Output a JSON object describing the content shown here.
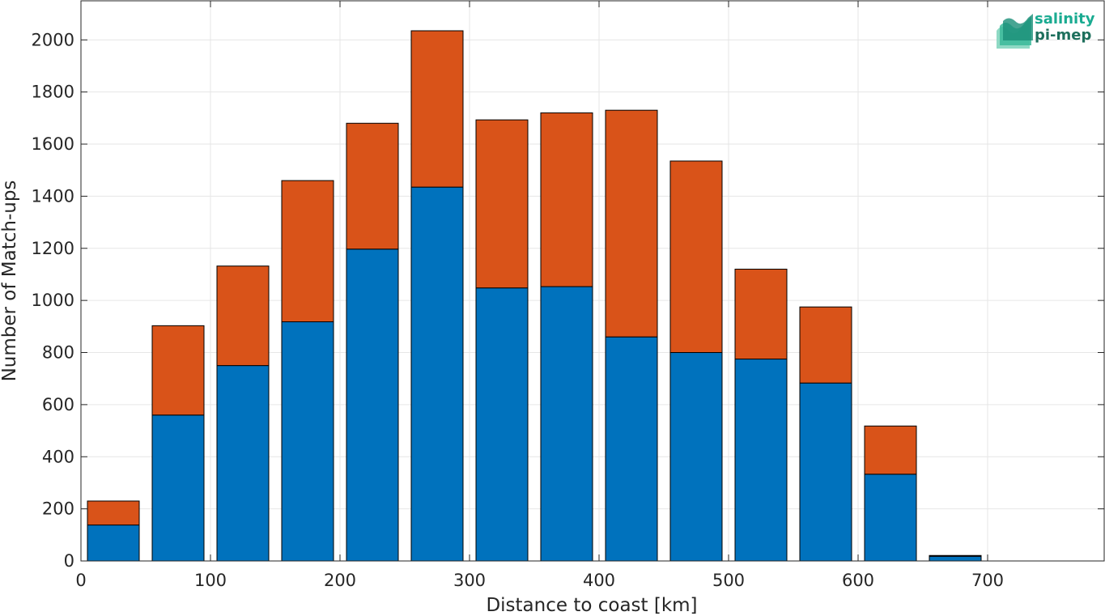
{
  "chart_data": {
    "type": "bar",
    "stacked": true,
    "xlabel": "Distance to coast [km]",
    "ylabel": "Number of Match-ups",
    "xlim": [
      0,
      790
    ],
    "ylim": [
      0,
      2150
    ],
    "xticks": [
      0,
      100,
      200,
      300,
      400,
      500,
      600,
      700
    ],
    "yticks": [
      0,
      200,
      400,
      600,
      800,
      1000,
      1200,
      1400,
      1600,
      1800,
      2000
    ],
    "grid": true,
    "bar_width_km": 40,
    "x": [
      25,
      75,
      125,
      175,
      225,
      275,
      325,
      375,
      425,
      475,
      525,
      575,
      625,
      675,
      725
    ],
    "series": [
      {
        "color": "#0072BD",
        "values": [
          138,
          560,
          750,
          918,
          1197,
          1435,
          1048,
          1053,
          860,
          800,
          775,
          683,
          333,
          18,
          0
        ]
      },
      {
        "color": "#D95319",
        "values": [
          92,
          343,
          382,
          542,
          483,
          600,
          645,
          667,
          870,
          735,
          345,
          292,
          185,
          3,
          0
        ]
      }
    ]
  },
  "logo": {
    "line1": "salinity",
    "line2": "pi-mep"
  }
}
